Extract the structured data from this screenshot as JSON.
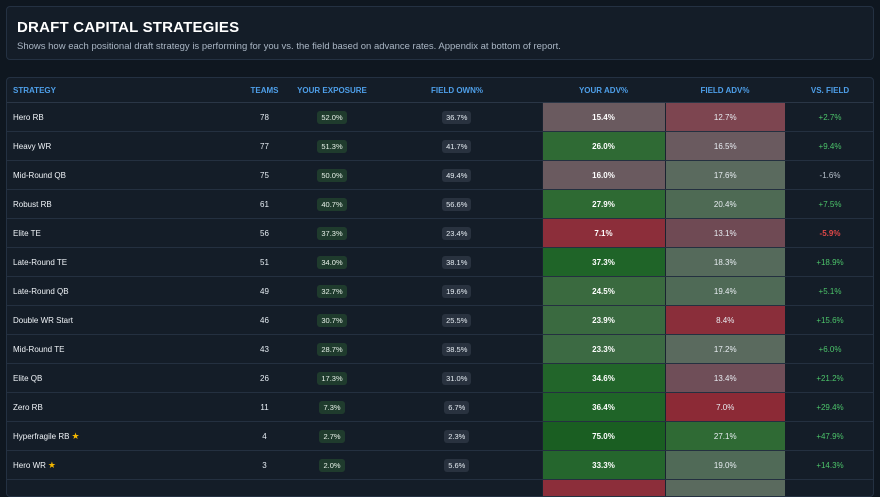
{
  "header": {
    "title": "DRAFT CAPITAL STRATEGIES",
    "subtitle": "Shows how each positional draft strategy is performing for you vs. the field based on advance rates. Appendix at bottom of report."
  },
  "columns": [
    "STRATEGY",
    "TEAMS",
    "YOUR EXPOSURE",
    "FIELD OWN%",
    "YOUR ADV%",
    "FIELD ADV%",
    "VS. FIELD"
  ],
  "colors": {
    "header_text": "#4e9fe9",
    "positive": "#4cc46a",
    "negative": "#e04848",
    "star": "#f5b800"
  },
  "rows": [
    {
      "strategy": "Hero RB",
      "teams": "78",
      "exposure": "52.0%",
      "field_own": "36.7%",
      "your_adv": "15.4%",
      "field_adv": "12.7%",
      "vs_field": "+2.7%",
      "vs_type": "pos",
      "starred": false,
      "your_adv_color": "#6a5a5f",
      "field_adv_color": "#7d4550"
    },
    {
      "strategy": "Heavy WR",
      "teams": "77",
      "exposure": "51.3%",
      "field_own": "41.7%",
      "your_adv": "26.0%",
      "field_adv": "16.5%",
      "vs_field": "+9.4%",
      "vs_type": "pos",
      "starred": false,
      "your_adv_color": "#2f6a34",
      "field_adv_color": "#6a5a5f"
    },
    {
      "strategy": "Mid-Round QB",
      "teams": "75",
      "exposure": "50.0%",
      "field_own": "49.4%",
      "your_adv": "16.0%",
      "field_adv": "17.6%",
      "vs_field": "-1.6%",
      "vs_type": "neutral",
      "starred": false,
      "your_adv_color": "#6a5a5f",
      "field_adv_color": "#5a6a5e"
    },
    {
      "strategy": "Robust RB",
      "teams": "61",
      "exposure": "40.7%",
      "field_own": "56.6%",
      "your_adv": "27.9%",
      "field_adv": "20.4%",
      "vs_field": "+7.5%",
      "vs_type": "pos",
      "starred": false,
      "your_adv_color": "#2e6a33",
      "field_adv_color": "#4e6a54"
    },
    {
      "strategy": "Elite TE",
      "teams": "56",
      "exposure": "37.3%",
      "field_own": "23.4%",
      "your_adv": "7.1%",
      "field_adv": "13.1%",
      "vs_field": "-5.9%",
      "vs_type": "neg",
      "starred": false,
      "your_adv_color": "#8c2e3a",
      "field_adv_color": "#6f4a54"
    },
    {
      "strategy": "Late-Round TE",
      "teams": "51",
      "exposure": "34.0%",
      "field_own": "38.1%",
      "your_adv": "37.3%",
      "field_adv": "18.3%",
      "vs_field": "+18.9%",
      "vs_type": "pos",
      "starred": false,
      "your_adv_color": "#1f6428",
      "field_adv_color": "#556a5b"
    },
    {
      "strategy": "Late-Round QB",
      "teams": "49",
      "exposure": "32.7%",
      "field_own": "19.6%",
      "your_adv": "24.5%",
      "field_adv": "19.4%",
      "vs_field": "+5.1%",
      "vs_type": "pos",
      "starred": false,
      "your_adv_color": "#3a6a3f",
      "field_adv_color": "#4f6a56"
    },
    {
      "strategy": "Double WR Start",
      "teams": "46",
      "exposure": "30.7%",
      "field_own": "25.5%",
      "your_adv": "23.9%",
      "field_adv": "8.4%",
      "vs_field": "+15.6%",
      "vs_type": "pos",
      "starred": false,
      "your_adv_color": "#3a6a40",
      "field_adv_color": "#8a2e3a"
    },
    {
      "strategy": "Mid-Round TE",
      "teams": "43",
      "exposure": "28.7%",
      "field_own": "38.5%",
      "your_adv": "23.3%",
      "field_adv": "17.2%",
      "vs_field": "+6.0%",
      "vs_type": "pos",
      "starred": false,
      "your_adv_color": "#3c6a43",
      "field_adv_color": "#5a6a5e"
    },
    {
      "strategy": "Elite QB",
      "teams": "26",
      "exposure": "17.3%",
      "field_own": "31.0%",
      "your_adv": "34.6%",
      "field_adv": "13.4%",
      "vs_field": "+21.2%",
      "vs_type": "pos",
      "starred": false,
      "your_adv_color": "#22652a",
      "field_adv_color": "#6f4e58"
    },
    {
      "strategy": "Zero RB",
      "teams": "11",
      "exposure": "7.3%",
      "field_own": "6.7%",
      "your_adv": "36.4%",
      "field_adv": "7.0%",
      "vs_field": "+29.4%",
      "vs_type": "pos",
      "starred": false,
      "your_adv_color": "#1f6428",
      "field_adv_color": "#8c2a36"
    },
    {
      "strategy": "Hyperfragile RB",
      "teams": "4",
      "exposure": "2.7%",
      "field_own": "2.3%",
      "your_adv": "75.0%",
      "field_adv": "27.1%",
      "vs_field": "+47.9%",
      "vs_type": "pos",
      "starred": true,
      "your_adv_color": "#1a5e22",
      "field_adv_color": "#2f6a34"
    },
    {
      "strategy": "Hero WR",
      "teams": "3",
      "exposure": "2.0%",
      "field_own": "5.6%",
      "your_adv": "33.3%",
      "field_adv": "19.0%",
      "vs_field": "+14.3%",
      "vs_type": "pos",
      "starred": true,
      "your_adv_color": "#25662d",
      "field_adv_color": "#506a57"
    },
    {
      "strategy": "",
      "teams": "",
      "exposure": "",
      "field_own": "",
      "your_adv": "",
      "field_adv": "",
      "vs_field": "",
      "vs_type": "pos",
      "starred": false,
      "your_adv_color": "#8c2e3a",
      "field_adv_color": "#5a6a5e"
    }
  ]
}
